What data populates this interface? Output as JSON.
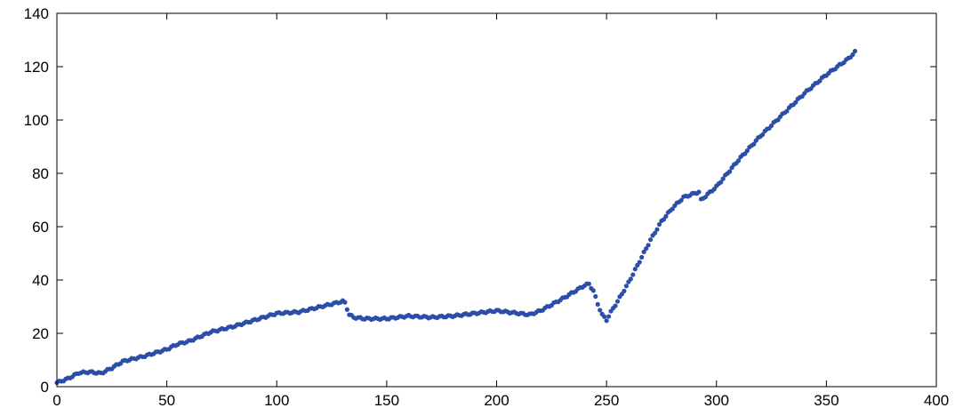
{
  "chart_data": {
    "type": "scatter",
    "title": "",
    "xlabel": "",
    "ylabel": "",
    "xlim": [
      0,
      400
    ],
    "ylim": [
      0,
      140
    ],
    "grid": false,
    "legend": "none",
    "xticks": [
      0,
      50,
      100,
      150,
      200,
      250,
      300,
      350,
      400
    ],
    "yticks": [
      0,
      20,
      40,
      60,
      80,
      100,
      120,
      140
    ],
    "xtick_labels": [
      "0",
      "50",
      "100",
      "150",
      "200",
      "250",
      "300",
      "350",
      "400"
    ],
    "ytick_labels": [
      "0",
      "20",
      "40",
      "60",
      "80",
      "100",
      "120",
      "140"
    ],
    "marker_color": "#2b4fa8",
    "anchors": [
      [
        0,
        1.5
      ],
      [
        5,
        3
      ],
      [
        10,
        5.2
      ],
      [
        15,
        5.5
      ],
      [
        20,
        5
      ],
      [
        25,
        7
      ],
      [
        30,
        9.5
      ],
      [
        40,
        11.5
      ],
      [
        50,
        14
      ],
      [
        55,
        16
      ],
      [
        60,
        17
      ],
      [
        70,
        20.5
      ],
      [
        80,
        22.5
      ],
      [
        90,
        25
      ],
      [
        100,
        27.5
      ],
      [
        110,
        28
      ],
      [
        120,
        30
      ],
      [
        130,
        32
      ],
      [
        131,
        31.5
      ],
      [
        133,
        27
      ],
      [
        135,
        26
      ],
      [
        140,
        25.5
      ],
      [
        150,
        25.5
      ],
      [
        160,
        26.5
      ],
      [
        170,
        26
      ],
      [
        180,
        26.5
      ],
      [
        190,
        27.5
      ],
      [
        200,
        28.5
      ],
      [
        210,
        27.5
      ],
      [
        215,
        27
      ],
      [
        220,
        28.5
      ],
      [
        230,
        33
      ],
      [
        240,
        38
      ],
      [
        242,
        38.5
      ],
      [
        244,
        36
      ],
      [
        246,
        31
      ],
      [
        248,
        27
      ],
      [
        250,
        25
      ],
      [
        252,
        28
      ],
      [
        255,
        32
      ],
      [
        260,
        39
      ],
      [
        265,
        47
      ],
      [
        270,
        55
      ],
      [
        275,
        62
      ],
      [
        280,
        67
      ],
      [
        285,
        71
      ],
      [
        290,
        72.5
      ],
      [
        292,
        73
      ],
      [
        293,
        70
      ],
      [
        300,
        75
      ],
      [
        310,
        85
      ],
      [
        320,
        94
      ],
      [
        330,
        102
      ],
      [
        340,
        110
      ],
      [
        350,
        117
      ],
      [
        360,
        123
      ],
      [
        363,
        125.5
      ]
    ]
  }
}
